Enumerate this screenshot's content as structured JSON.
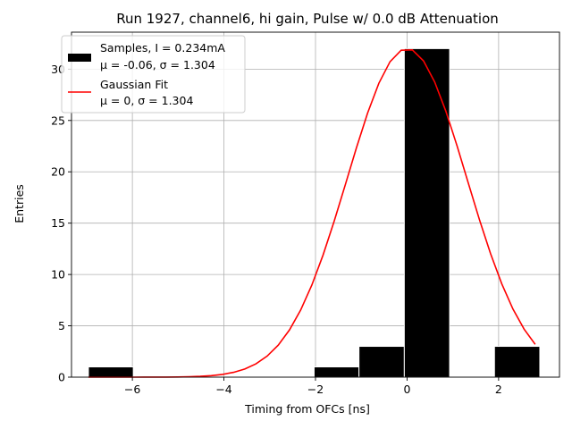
{
  "chart_data": {
    "type": "bar",
    "title": "Run 1927, channel6, hi gain, Pulse w/ 0.0 dB Attenuation",
    "xlabel": "Timing from OFCs [ns]",
    "ylabel": "Entries",
    "xlim": [
      -7.33,
      3.33
    ],
    "ylim": [
      0,
      33.6
    ],
    "xticks": [
      -6,
      -4,
      -2,
      0,
      2
    ],
    "xtick_labels": [
      "−6",
      "−4",
      "−2",
      "0",
      "2"
    ],
    "yticks": [
      0,
      5,
      10,
      15,
      20,
      25,
      30
    ],
    "grid": true,
    "legend_position": "top-left",
    "histogram": {
      "name": "Samples, I = 0.234mA",
      "stats": "μ = -0.06, σ = 1.304",
      "color": "#000000",
      "edge_color": "#ffffff",
      "bins": [
        {
          "x0": -6.96,
          "x1": -5.98,
          "count": 1
        },
        {
          "x0": -2.03,
          "x1": -1.05,
          "count": 1
        },
        {
          "x0": -1.05,
          "x1": -0.06,
          "count": 3
        },
        {
          "x0": -0.06,
          "x1": 0.93,
          "count": 32
        },
        {
          "x0": 1.91,
          "x1": 2.9,
          "count": 3
        }
      ]
    },
    "fit": {
      "name": "Gaussian Fit",
      "stats": "μ = 0, σ = 1.304",
      "color": "#ff0000",
      "mu": 0,
      "sigma": 1.304,
      "amplitude": 32,
      "x_range": [
        -6.96,
        2.8
      ]
    }
  }
}
